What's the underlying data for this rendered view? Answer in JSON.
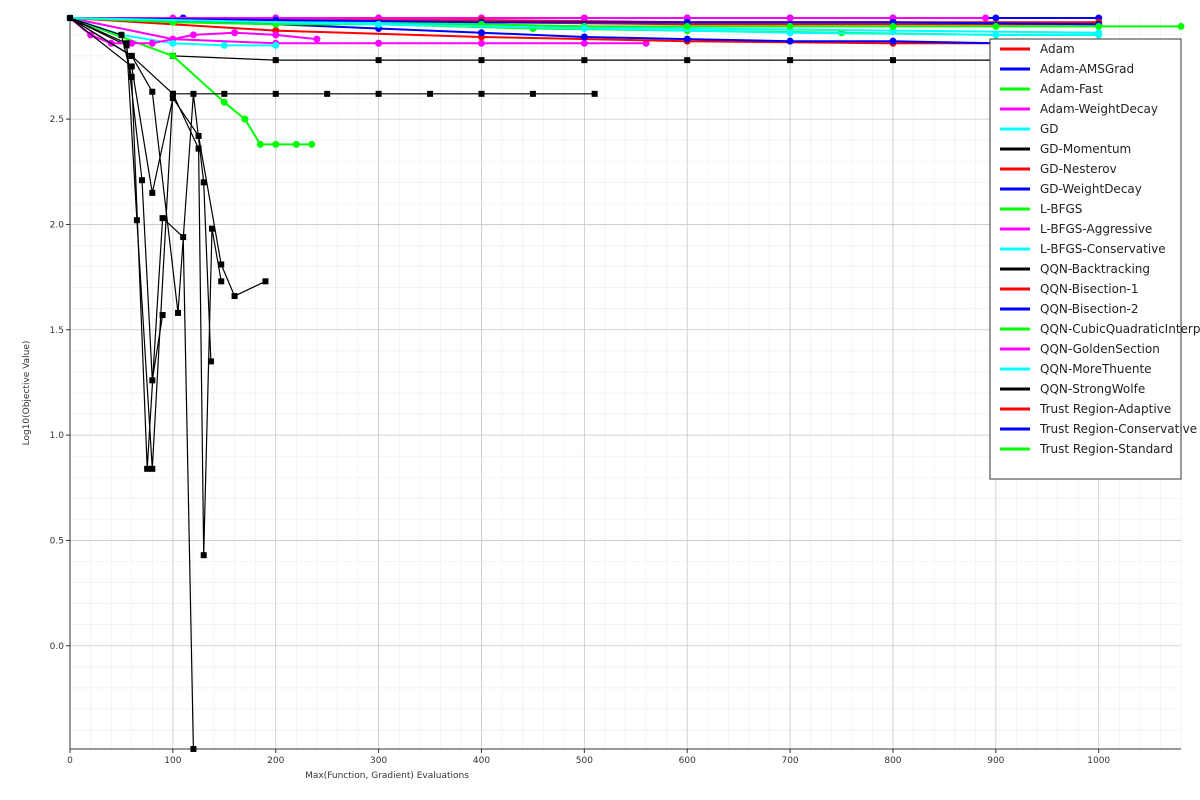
{
  "chart_data": {
    "type": "line",
    "title": "",
    "xlabel": "Max(Function, Gradient) Evaluations",
    "ylabel": "Log10(Objective Value)",
    "xlim": [
      0,
      1080
    ],
    "ylim": [
      -0.49,
      2.98
    ],
    "x_ticks": [
      "0",
      "100",
      "200",
      "300",
      "400",
      "500",
      "600",
      "700",
      "800",
      "900",
      "1000"
    ],
    "y_ticks": [
      "0.0",
      "0.5",
      "1.0",
      "1.5",
      "2.0",
      "2.5"
    ],
    "grid": true,
    "legend_position": "top-right",
    "legend": [
      {
        "label": "Adam",
        "color": "#ff0000"
      },
      {
        "label": "Adam-AMSGrad",
        "color": "#0000ff"
      },
      {
        "label": "Adam-Fast",
        "color": "#00ff00"
      },
      {
        "label": "Adam-WeightDecay",
        "color": "#ff00ff"
      },
      {
        "label": "GD",
        "color": "#00ffff"
      },
      {
        "label": "GD-Momentum",
        "color": "#000000"
      },
      {
        "label": "GD-Nesterov",
        "color": "#ff0000"
      },
      {
        "label": "GD-WeightDecay",
        "color": "#0000ff"
      },
      {
        "label": "L-BFGS",
        "color": "#00ff00"
      },
      {
        "label": "L-BFGS-Aggressive",
        "color": "#ff00ff"
      },
      {
        "label": "L-BFGS-Conservative",
        "color": "#00ffff"
      },
      {
        "label": "QQN-Backtracking",
        "color": "#000000"
      },
      {
        "label": "QQN-Bisection-1",
        "color": "#ff0000"
      },
      {
        "label": "QQN-Bisection-2",
        "color": "#0000ff"
      },
      {
        "label": "QQN-CubicQuadraticInterpolation",
        "color": "#00ff00"
      },
      {
        "label": "QQN-GoldenSection",
        "color": "#ff00ff"
      },
      {
        "label": "QQN-MoreThuente",
        "color": "#00ffff"
      },
      {
        "label": "QQN-StrongWolfe",
        "color": "#000000"
      },
      {
        "label": "Trust Region-Adaptive",
        "color": "#ff0000"
      },
      {
        "label": "Trust Region-Conservative",
        "color": "#0000ff"
      },
      {
        "label": "Trust Region-Standard",
        "color": "#00ff00"
      }
    ],
    "series": [
      {
        "color": "#ff0000",
        "x": [
          0,
          200,
          400,
          600,
          800,
          1000
        ],
        "y": [
          2.98,
          2.96,
          2.96,
          2.95,
          2.95,
          2.95
        ]
      },
      {
        "color": "#0000ff",
        "x": [
          0,
          110,
          200,
          300,
          400,
          500,
          600,
          700,
          800,
          900,
          1000
        ],
        "y": [
          2.98,
          2.98,
          2.98,
          2.98,
          2.98,
          2.98,
          2.98,
          2.98,
          2.98,
          2.98,
          2.98
        ]
      },
      {
        "color": "#00ff00",
        "x": [
          0,
          150,
          300,
          450,
          600,
          750,
          900,
          1000
        ],
        "y": [
          2.98,
          2.97,
          2.95,
          2.93,
          2.92,
          2.91,
          2.9,
          2.9
        ]
      },
      {
        "color": "#ff00ff",
        "x": [
          0,
          100,
          200,
          300,
          400,
          500,
          560
        ],
        "y": [
          2.98,
          2.88,
          2.86,
          2.86,
          2.86,
          2.86,
          2.86
        ]
      },
      {
        "color": "#00ffff",
        "x": [
          0,
          200,
          400,
          600,
          800,
          1000
        ],
        "y": [
          2.98,
          2.97,
          2.95,
          2.93,
          2.92,
          2.91
        ]
      },
      {
        "color": "#000000",
        "x": [
          0,
          100,
          200,
          300,
          400,
          500,
          600,
          700,
          800,
          900,
          1000
        ],
        "y": [
          2.98,
          2.8,
          2.78,
          2.78,
          2.78,
          2.78,
          2.78,
          2.78,
          2.78,
          2.78,
          2.78
        ]
      },
      {
        "color": "#ff0000",
        "x": [
          0,
          200,
          400,
          600,
          800,
          900
        ],
        "y": [
          2.98,
          2.92,
          2.89,
          2.87,
          2.86,
          2.86
        ]
      },
      {
        "color": "#0000ff",
        "x": [
          0,
          200,
          300,
          400,
          500,
          600,
          700,
          800,
          900
        ],
        "y": [
          2.98,
          2.95,
          2.93,
          2.91,
          2.89,
          2.88,
          2.87,
          2.87,
          2.86
        ]
      },
      {
        "color": "#00ff00",
        "x": [
          0,
          100,
          150,
          170,
          185,
          200,
          220,
          235
        ],
        "y": [
          2.98,
          2.8,
          2.58,
          2.5,
          2.38,
          2.38,
          2.38,
          2.38
        ]
      },
      {
        "color": "#ff00ff",
        "x": [
          0,
          100,
          200,
          300,
          400,
          500,
          600,
          700,
          800,
          890
        ],
        "y": [
          2.98,
          2.98,
          2.98,
          2.98,
          2.98,
          2.98,
          2.98,
          2.98,
          2.98,
          2.98
        ]
      },
      {
        "color": "#00ffff",
        "x": [
          0,
          50,
          100,
          150,
          200
        ],
        "y": [
          2.98,
          2.9,
          2.86,
          2.85,
          2.85
        ]
      },
      {
        "color": "#000000",
        "x": [
          0,
          55,
          70,
          80,
          90
        ],
        "y": [
          2.98,
          2.85,
          2.21,
          1.26,
          1.57
        ]
      },
      {
        "color": "#ff0000",
        "x": [
          0,
          200,
          400,
          600,
          800,
          1000
        ],
        "y": [
          2.98,
          2.97,
          2.97,
          2.96,
          2.96,
          2.96
        ]
      },
      {
        "color": "#0000ff",
        "x": [
          0,
          200,
          400,
          600,
          800,
          1000
        ],
        "y": [
          2.98,
          2.97,
          2.96,
          2.96,
          2.96,
          2.95
        ]
      },
      {
        "color": "#00ff00",
        "x": [
          0,
          100,
          200,
          300,
          400,
          500,
          600,
          700,
          800,
          900,
          1000,
          1080
        ],
        "y": [
          2.98,
          2.96,
          2.95,
          2.95,
          2.95,
          2.94,
          2.94,
          2.94,
          2.94,
          2.94,
          2.94,
          2.94
        ]
      },
      {
        "color": "#ff00ff",
        "x": [
          0,
          20,
          40,
          60,
          80,
          120,
          160,
          200,
          240
        ],
        "y": [
          2.98,
          2.9,
          2.86,
          2.86,
          2.86,
          2.9,
          2.91,
          2.9,
          2.88
        ]
      },
      {
        "color": "#00ffff",
        "x": [
          0,
          300,
          500,
          700,
          900,
          1000
        ],
        "y": [
          2.98,
          2.95,
          2.93,
          2.91,
          2.9,
          2.9
        ]
      },
      {
        "color": "#000000",
        "x": [
          0,
          50,
          60,
          75,
          90,
          110,
          120
        ],
        "y": [
          2.98,
          2.9,
          2.7,
          0.84,
          2.03,
          1.94,
          -0.49
        ]
      },
      {
        "color": "#000000",
        "x": [
          0,
          55,
          65,
          80,
          100,
          125,
          130,
          138,
          147
        ],
        "y": [
          2.98,
          2.86,
          2.02,
          0.84,
          2.62,
          2.36,
          0.43,
          1.98,
          1.73
        ]
      },
      {
        "color": "#000000",
        "x": [
          0,
          60,
          80,
          105,
          120,
          130,
          137
        ],
        "y": [
          2.98,
          2.8,
          2.63,
          1.58,
          2.62,
          2.2,
          1.35
        ]
      },
      {
        "color": "#000000",
        "x": [
          0,
          60,
          80,
          100,
          125,
          147,
          160,
          190
        ],
        "y": [
          2.98,
          2.75,
          2.15,
          2.6,
          2.42,
          1.81,
          1.66,
          1.73
        ]
      },
      {
        "color": "#000000",
        "x": [
          0,
          60,
          100,
          150,
          200,
          250,
          300,
          350,
          400,
          450,
          510
        ],
        "y": [
          2.98,
          2.8,
          2.62,
          2.62,
          2.62,
          2.62,
          2.62,
          2.62,
          2.62,
          2.62,
          2.62
        ]
      }
    ]
  }
}
